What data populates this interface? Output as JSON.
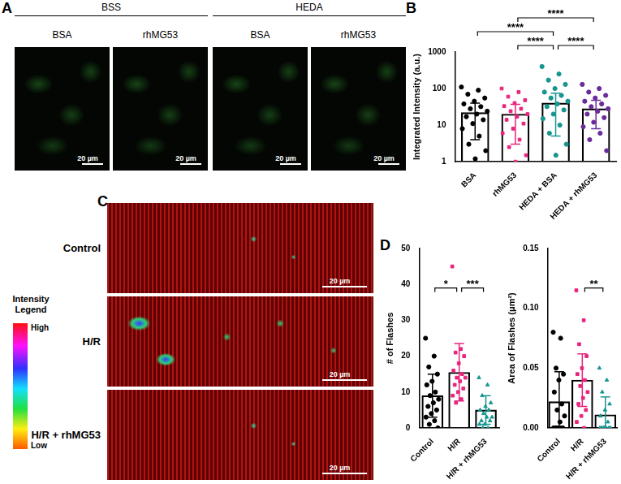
{
  "figure": {
    "panels": [
      "A",
      "B",
      "C",
      "D"
    ],
    "panel_a": {
      "groups": [
        {
          "title": "BSS",
          "images": [
            "BSA",
            "rhMG53"
          ]
        },
        {
          "title": "HEDA",
          "images": [
            "BSA",
            "rhMG53"
          ]
        }
      ],
      "scale_bar": "20 µm"
    },
    "panel_c": {
      "rows": [
        "Control",
        "H/R",
        "H/R + rhMG53"
      ],
      "scale_bar": "20 µm",
      "color_legend": {
        "title": "Intensity Legend",
        "high": "High",
        "low": "Low"
      }
    }
  },
  "chart_data": [
    {
      "type": "bar",
      "ylabel": "Integrated Intensity (a.u.)",
      "categories": [
        "BSA",
        "rhMG53",
        "HEDA + BSA",
        "HEDA + rhMG53"
      ],
      "values": [
        22,
        20,
        40,
        28
      ],
      "errors": [
        18,
        17,
        35,
        20
      ],
      "points": [
        [
          110,
          90,
          70,
          55,
          45,
          38,
          32,
          28,
          24,
          20,
          17,
          14,
          11,
          8,
          5,
          3,
          2,
          1.2
        ],
        [
          100,
          80,
          60,
          48,
          40,
          33,
          28,
          24,
          20,
          17,
          14,
          11,
          8,
          6,
          4,
          2.5,
          1.5,
          1
        ],
        [
          400,
          250,
          170,
          130,
          100,
          80,
          65,
          55,
          45,
          38,
          32,
          26,
          20,
          15,
          10,
          6,
          3,
          1.5
        ],
        [
          130,
          100,
          80,
          65,
          55,
          45,
          38,
          32,
          28,
          24,
          20,
          16,
          12,
          9,
          6,
          4,
          2
        ]
      ],
      "colors": [
        "#000000",
        "#e8247c",
        "#16968f",
        "#6a2c9a"
      ],
      "ylim": [
        1,
        1000
      ],
      "yticks": [
        1,
        10,
        100,
        1000
      ],
      "log": "y",
      "grid": false,
      "comparisons": [
        {
          "from": "rhMG53",
          "to": "HEDA + BSA",
          "label": "****"
        },
        {
          "from": "HEDA + BSA",
          "to": "HEDA + rhMG53",
          "label": "****"
        },
        {
          "from": "BSA",
          "to": "HEDA + BSA",
          "label": "****"
        },
        {
          "from": "rhMG53",
          "to": "HEDA + rhMG53",
          "label": "****"
        }
      ]
    },
    {
      "type": "bar",
      "ylabel": "# of Flashes",
      "categories": [
        "Control",
        "H/R",
        "H/R + rhMG53"
      ],
      "values": [
        9,
        15.5,
        5
      ],
      "errors": [
        6,
        8,
        4
      ],
      "points": [
        [
          25,
          20,
          17,
          15,
          13,
          12,
          10,
          9,
          8,
          7,
          6,
          5,
          4,
          3,
          2,
          1,
          0
        ],
        [
          45,
          22,
          21,
          20,
          18,
          16,
          15,
          14,
          14,
          13,
          12,
          11,
          10,
          9,
          8,
          7
        ],
        [
          14,
          12,
          9,
          7,
          6,
          5,
          5,
          4,
          3,
          3,
          2,
          2,
          1,
          1,
          0,
          0
        ]
      ],
      "colors": [
        "#000000",
        "#e8247c",
        "#16968f"
      ],
      "ylim": [
        0,
        50
      ],
      "yticks": [
        0,
        10,
        20,
        30,
        40,
        50
      ],
      "grid": false,
      "comparisons": [
        {
          "from": "Control",
          "to": "H/R",
          "label": "*"
        },
        {
          "from": "H/R",
          "to": "H/R + rhMG53",
          "label": "***"
        }
      ]
    },
    {
      "type": "bar",
      "ylabel": "Area of Flashes (μm²)",
      "categories": [
        "Control",
        "H/R",
        "H/R + rhMG53"
      ],
      "values": [
        0.022,
        0.04,
        0.011
      ],
      "errors": [
        0.025,
        0.022,
        0.015
      ],
      "points": [
        [
          0.08,
          0.075,
          0.05,
          0.045,
          0.04,
          0.03,
          0.02,
          0.015,
          0.01,
          0.005,
          0,
          0,
          0,
          0,
          0,
          0
        ],
        [
          0.115,
          0.09,
          0.07,
          0.06,
          0.05,
          0.045,
          0.04,
          0.035,
          0.03,
          0.025,
          0.02,
          0.015,
          0.01,
          0.005,
          0
        ],
        [
          0.05,
          0.04,
          0.03,
          0.02,
          0.015,
          0.01,
          0.005,
          0,
          0,
          0,
          0,
          0,
          0,
          0
        ]
      ],
      "colors": [
        "#000000",
        "#e8247c",
        "#16968f"
      ],
      "ylim": [
        0,
        0.15
      ],
      "yticks": [
        {
          "value": 0,
          "label": "0.00"
        },
        {
          "value": 0.05,
          "label": "0.05"
        },
        {
          "value": 0.1,
          "label": "0.10"
        },
        {
          "value": 0.15,
          "label": "0.15"
        }
      ],
      "grid": false,
      "comparisons": [
        {
          "from": "H/R",
          "to": "H/R + rhMG53",
          "label": "**"
        }
      ]
    }
  ]
}
